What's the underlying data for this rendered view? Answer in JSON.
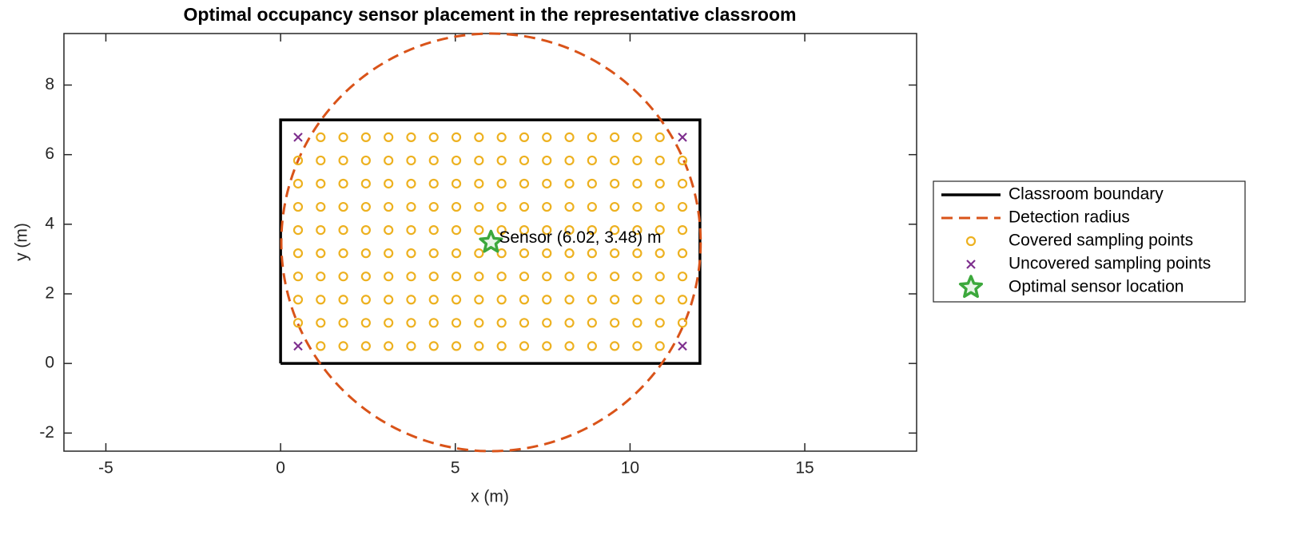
{
  "chart_data": {
    "type": "scatter",
    "title": "Optimal occupancy sensor placement in the representative classroom",
    "x_label": "x (m)",
    "y_label": "y (m)",
    "xlim": [
      -6.2,
      18.2
    ],
    "ylim": [
      -2.52,
      9.48
    ],
    "xticks": [
      -5,
      0,
      5,
      10,
      15
    ],
    "yticks": [
      -2,
      0,
      2,
      4,
      6,
      8
    ],
    "legend": "right",
    "annotation": "Sensor (6.02, 3.48) m",
    "series": [
      {
        "name": "Classroom boundary",
        "kind": "line",
        "color": "#000000",
        "x": [
          0,
          12,
          12,
          0,
          0
        ],
        "y": [
          0,
          0,
          7,
          7,
          0
        ]
      },
      {
        "name": "Detection radius",
        "kind": "circle",
        "color": "#D95319",
        "center": [
          6.02,
          3.48
        ],
        "radius": 6
      },
      {
        "name": "Covered sampling points",
        "kind": "o",
        "color": "#EDB120",
        "x": [
          1.147,
          1.794,
          2.441,
          3.088,
          3.735,
          4.382,
          5.029,
          5.676,
          6.324,
          6.971,
          7.618,
          8.265,
          8.912,
          9.559,
          10.206,
          10.853,
          0.5,
          1.147,
          1.794,
          2.441,
          3.088,
          3.735,
          4.382,
          5.029,
          5.676,
          6.324,
          6.971,
          7.618,
          8.265,
          8.912,
          9.559,
          10.206,
          10.853,
          11.5,
          0.5,
          1.147,
          1.794,
          2.441,
          3.088,
          3.735,
          4.382,
          5.029,
          5.676,
          6.324,
          6.971,
          7.618,
          8.265,
          8.912,
          9.559,
          10.206,
          10.853,
          11.5,
          0.5,
          1.147,
          1.794,
          2.441,
          3.088,
          3.735,
          4.382,
          5.029,
          5.676,
          6.324,
          6.971,
          7.618,
          8.265,
          8.912,
          9.559,
          10.206,
          10.853,
          11.5,
          0.5,
          1.147,
          1.794,
          2.441,
          3.088,
          3.735,
          4.382,
          5.029,
          5.676,
          6.324,
          6.971,
          7.618,
          8.265,
          8.912,
          9.559,
          10.206,
          10.853,
          11.5,
          0.5,
          1.147,
          1.794,
          2.441,
          3.088,
          3.735,
          4.382,
          5.029,
          5.676,
          6.324,
          6.971,
          7.618,
          8.265,
          8.912,
          9.559,
          10.206,
          10.853,
          11.5,
          0.5,
          1.147,
          1.794,
          2.441,
          3.088,
          3.735,
          4.382,
          5.029,
          5.676,
          6.324,
          6.971,
          7.618,
          8.265,
          8.912,
          9.559,
          10.206,
          10.853,
          11.5,
          0.5,
          1.147,
          1.794,
          2.441,
          3.088,
          3.735,
          4.382,
          5.029,
          5.676,
          6.324,
          6.971,
          7.618,
          8.265,
          8.912,
          9.559,
          10.206,
          10.853,
          11.5,
          0.5,
          1.147,
          1.794,
          2.441,
          3.088,
          3.735,
          4.382,
          5.029,
          5.676,
          6.324,
          6.971,
          7.618,
          8.265,
          8.912,
          9.559,
          10.206,
          10.853,
          11.5,
          1.147,
          1.794,
          2.441,
          3.088,
          3.735,
          4.382,
          5.029,
          5.676,
          6.324,
          6.971,
          7.618,
          8.265,
          8.912,
          9.559,
          10.206,
          10.853
        ],
        "y": [
          0.5,
          0.5,
          0.5,
          0.5,
          0.5,
          0.5,
          0.5,
          0.5,
          0.5,
          0.5,
          0.5,
          0.5,
          0.5,
          0.5,
          0.5,
          0.5,
          1.167,
          1.167,
          1.167,
          1.167,
          1.167,
          1.167,
          1.167,
          1.167,
          1.167,
          1.167,
          1.167,
          1.167,
          1.167,
          1.167,
          1.167,
          1.167,
          1.167,
          1.167,
          1.833,
          1.833,
          1.833,
          1.833,
          1.833,
          1.833,
          1.833,
          1.833,
          1.833,
          1.833,
          1.833,
          1.833,
          1.833,
          1.833,
          1.833,
          1.833,
          1.833,
          1.833,
          2.5,
          2.5,
          2.5,
          2.5,
          2.5,
          2.5,
          2.5,
          2.5,
          2.5,
          2.5,
          2.5,
          2.5,
          2.5,
          2.5,
          2.5,
          2.5,
          2.5,
          2.5,
          3.167,
          3.167,
          3.167,
          3.167,
          3.167,
          3.167,
          3.167,
          3.167,
          3.167,
          3.167,
          3.167,
          3.167,
          3.167,
          3.167,
          3.167,
          3.167,
          3.167,
          3.167,
          3.833,
          3.833,
          3.833,
          3.833,
          3.833,
          3.833,
          3.833,
          3.833,
          3.833,
          3.833,
          3.833,
          3.833,
          3.833,
          3.833,
          3.833,
          3.833,
          3.833,
          3.833,
          4.5,
          4.5,
          4.5,
          4.5,
          4.5,
          4.5,
          4.5,
          4.5,
          4.5,
          4.5,
          4.5,
          4.5,
          4.5,
          4.5,
          4.5,
          4.5,
          4.5,
          4.5,
          5.167,
          5.167,
          5.167,
          5.167,
          5.167,
          5.167,
          5.167,
          5.167,
          5.167,
          5.167,
          5.167,
          5.167,
          5.167,
          5.167,
          5.167,
          5.167,
          5.167,
          5.167,
          5.833,
          5.833,
          5.833,
          5.833,
          5.833,
          5.833,
          5.833,
          5.833,
          5.833,
          5.833,
          5.833,
          5.833,
          5.833,
          5.833,
          5.833,
          5.833,
          5.833,
          5.833,
          6.5,
          6.5,
          6.5,
          6.5,
          6.5,
          6.5,
          6.5,
          6.5,
          6.5,
          6.5,
          6.5,
          6.5,
          6.5,
          6.5,
          6.5,
          6.5
        ]
      },
      {
        "name": "Uncovered sampling points",
        "kind": "x",
        "color": "#7E2F8E",
        "x": [
          0.5,
          11.5,
          0.5,
          11.5
        ],
        "y": [
          0.5,
          0.5,
          6.5,
          6.5
        ]
      },
      {
        "name": "Optimal sensor location",
        "kind": "star",
        "color": "#3CA83C",
        "x": [
          6.02
        ],
        "y": [
          3.48
        ]
      }
    ]
  }
}
